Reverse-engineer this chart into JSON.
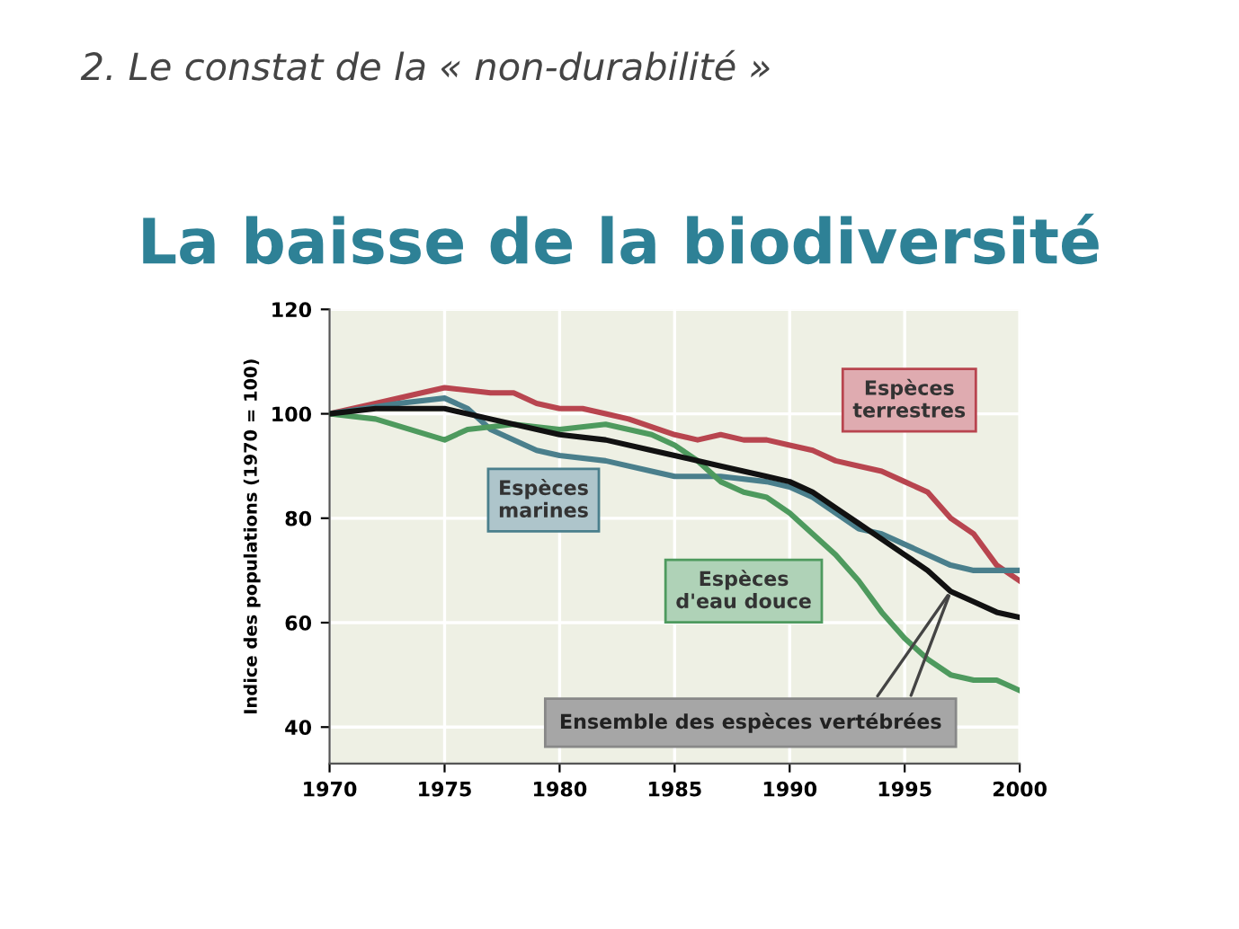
{
  "chart_data": {
    "type": "line",
    "title": "La baisse de la biodiversité",
    "subtitle": "2. Le constat de la « non-durabilité »",
    "ylabel": "Indice des populations (1970 = 100)",
    "annotations": [
      {
        "text": "Ensemble des espèces vertébrées",
        "x": 1997,
        "y": 66
      }
    ],
    "xlim": [
      1970,
      2000
    ],
    "xticks": [
      1970,
      1975,
      1980,
      1985,
      1990,
      1995,
      2000
    ],
    "ylim": [
      33,
      120
    ],
    "yticks": [
      40,
      60,
      80,
      100,
      120
    ],
    "grid": true,
    "legend": false,
    "marker": "none",
    "line_style": "solid",
    "series": [
      {
        "name": "Espèces terrestres",
        "color": "#b8454f",
        "x": [
          1970,
          1972,
          1974,
          1975,
          1977,
          1978,
          1979,
          1980,
          1981,
          1982,
          1983,
          1985,
          1986,
          1987,
          1988,
          1989,
          1990,
          1991,
          1992,
          1993,
          1994,
          1995,
          1996,
          1997,
          1998,
          1999,
          2000
        ],
        "values": [
          100,
          102,
          104,
          105,
          104,
          104,
          102,
          101,
          101,
          100,
          99,
          96,
          95,
          96,
          95,
          95,
          94,
          93,
          91,
          90,
          89,
          87,
          85,
          80,
          77,
          71,
          68
        ]
      },
      {
        "name": "Espèces marines",
        "color": "#4a7f8c",
        "x": [
          1970,
          1973,
          1975,
          1976,
          1977,
          1979,
          1980,
          1982,
          1984,
          1985,
          1987,
          1989,
          1990,
          1991,
          1992,
          1993,
          1994,
          1995,
          1996,
          1997,
          1998,
          1999,
          2000
        ],
        "values": [
          100,
          102,
          103,
          101,
          97,
          93,
          92,
          91,
          89,
          88,
          88,
          87,
          86,
          84,
          81,
          78,
          77,
          75,
          73,
          71,
          70,
          70,
          70
        ]
      },
      {
        "name": "Espèces d'eau douce",
        "color": "#4e9a5e",
        "x": [
          1970,
          1972,
          1975,
          1976,
          1978,
          1980,
          1982,
          1984,
          1985,
          1986,
          1987,
          1988,
          1989,
          1990,
          1991,
          1992,
          1993,
          1994,
          1995,
          1996,
          1997,
          1998,
          1999,
          2000
        ],
        "values": [
          100,
          99,
          95,
          97,
          98,
          97,
          98,
          96,
          94,
          91,
          87,
          85,
          84,
          81,
          77,
          73,
          68,
          62,
          57,
          53,
          50,
          49,
          49,
          47
        ]
      },
      {
        "color": "#111111",
        "x": [
          1970,
          1972,
          1975,
          1977,
          1980,
          1982,
          1984,
          1985,
          1987,
          1989,
          1990,
          1991,
          1992,
          1993,
          1994,
          1995,
          1996,
          1997,
          1998,
          1999,
          2000
        ],
        "values": [
          100,
          101,
          101,
          99,
          96,
          95,
          93,
          92,
          90,
          88,
          87,
          85,
          82,
          79,
          76,
          73,
          70,
          66,
          64,
          62,
          61
        ]
      }
    ]
  }
}
